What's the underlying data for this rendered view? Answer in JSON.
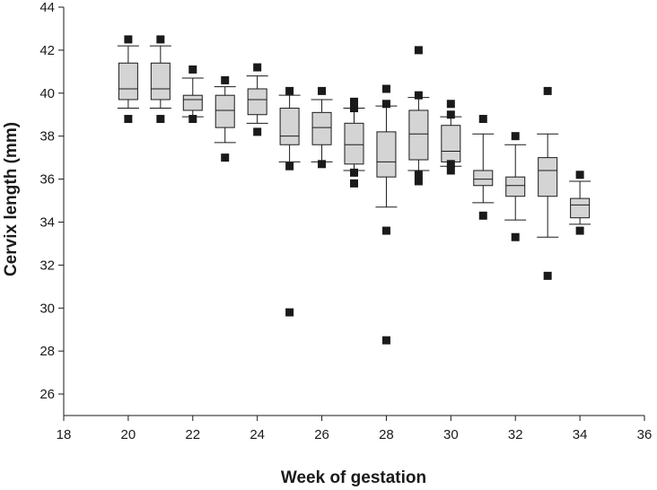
{
  "chart_data": {
    "type": "box",
    "xlabel": "Week of gestation",
    "ylabel": "Cervix length (mm)",
    "xlim": [
      18,
      36
    ],
    "ylim": [
      25,
      44
    ],
    "x_ticks": [
      18,
      20,
      22,
      24,
      26,
      28,
      30,
      32,
      34,
      36
    ],
    "y_ticks": [
      26,
      28,
      30,
      32,
      34,
      36,
      38,
      40,
      42,
      44
    ],
    "grid": false,
    "colors": {
      "box_fill": "#d4d4d4",
      "stroke": "#1a1a1a",
      "outlier": "#1a1a1a"
    },
    "boxes": [
      {
        "week": 20,
        "whisker_low": 39.3,
        "q1": 39.7,
        "median": 40.2,
        "q3": 41.4,
        "whisker_high": 42.2,
        "outliers": [
          42.5,
          38.8
        ]
      },
      {
        "week": 21,
        "whisker_low": 39.3,
        "q1": 39.7,
        "median": 40.2,
        "q3": 41.4,
        "whisker_high": 42.2,
        "outliers": [
          42.5,
          38.8
        ]
      },
      {
        "week": 22,
        "whisker_low": 38.9,
        "q1": 39.2,
        "median": 39.7,
        "q3": 39.9,
        "whisker_high": 40.7,
        "outliers": [
          41.1,
          38.8
        ]
      },
      {
        "week": 23,
        "whisker_low": 37.7,
        "q1": 38.4,
        "median": 39.2,
        "q3": 39.9,
        "whisker_high": 40.3,
        "outliers": [
          40.6,
          37.0
        ]
      },
      {
        "week": 24,
        "whisker_low": 38.6,
        "q1": 39.0,
        "median": 39.7,
        "q3": 40.2,
        "whisker_high": 40.8,
        "outliers": [
          41.2,
          38.2
        ]
      },
      {
        "week": 25,
        "whisker_low": 36.8,
        "q1": 37.6,
        "median": 38.0,
        "q3": 39.3,
        "whisker_high": 39.9,
        "outliers": [
          40.1,
          36.6,
          29.8
        ]
      },
      {
        "week": 26,
        "whisker_low": 36.8,
        "q1": 37.6,
        "median": 38.4,
        "q3": 39.1,
        "whisker_high": 39.7,
        "outliers": [
          40.1,
          36.7
        ]
      },
      {
        "week": 27,
        "whisker_low": 36.4,
        "q1": 36.7,
        "median": 37.6,
        "q3": 38.6,
        "whisker_high": 39.3,
        "outliers": [
          39.6,
          39.3,
          36.3,
          35.8
        ]
      },
      {
        "week": 28,
        "whisker_low": 34.7,
        "q1": 36.1,
        "median": 36.8,
        "q3": 38.2,
        "whisker_high": 39.4,
        "outliers": [
          40.2,
          39.5,
          33.6,
          28.5
        ]
      },
      {
        "week": 29,
        "whisker_low": 36.4,
        "q1": 36.9,
        "median": 38.1,
        "q3": 39.2,
        "whisker_high": 39.8,
        "outliers": [
          42.0,
          39.9,
          36.2,
          35.9
        ]
      },
      {
        "week": 30,
        "whisker_low": 36.6,
        "q1": 36.8,
        "median": 37.3,
        "q3": 38.5,
        "whisker_high": 38.9,
        "outliers": [
          39.5,
          39.0,
          36.7,
          36.4
        ]
      },
      {
        "week": 31,
        "whisker_low": 34.9,
        "q1": 35.7,
        "median": 36.0,
        "q3": 36.4,
        "whisker_high": 38.1,
        "outliers": [
          38.8,
          34.3
        ]
      },
      {
        "week": 32,
        "whisker_low": 34.1,
        "q1": 35.2,
        "median": 35.7,
        "q3": 36.1,
        "whisker_high": 37.6,
        "outliers": [
          38.0,
          33.3
        ]
      },
      {
        "week": 33,
        "whisker_low": 33.3,
        "q1": 35.2,
        "median": 36.4,
        "q3": 37.0,
        "whisker_high": 38.1,
        "outliers": [
          40.1,
          31.5
        ]
      },
      {
        "week": 34,
        "whisker_low": 33.9,
        "q1": 34.2,
        "median": 34.8,
        "q3": 35.1,
        "whisker_high": 35.9,
        "outliers": [
          36.2,
          33.6
        ]
      }
    ]
  }
}
